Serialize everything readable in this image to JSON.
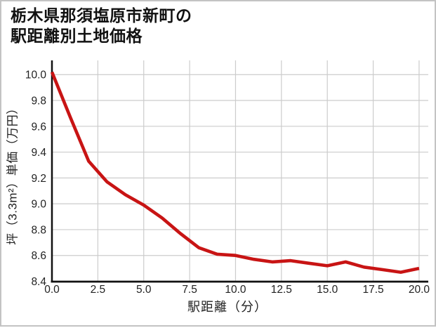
{
  "title": {
    "line1": "栃木県那須塩原市新町の",
    "line2": "駅距離別土地価格"
  },
  "chart_data": {
    "type": "line",
    "title": "栃木県那須塩原市新町の駅距離別土地価格",
    "xlabel": "駅距離（分）",
    "ylabel": "坪（3.3m²）単価（万円）",
    "x": [
      0,
      1,
      2,
      3,
      4,
      5,
      6,
      7,
      8,
      9,
      10,
      11,
      12,
      13,
      14,
      15,
      16,
      17,
      18,
      19,
      20
    ],
    "y": [
      10.02,
      9.67,
      9.33,
      9.17,
      9.07,
      8.99,
      8.89,
      8.77,
      8.66,
      8.61,
      8.6,
      8.57,
      8.55,
      8.56,
      8.54,
      8.52,
      8.55,
      8.51,
      8.49,
      8.47,
      8.5
    ],
    "xlim": [
      0,
      20.5
    ],
    "ylim": [
      8.4,
      10.11
    ],
    "x_ticks": [
      0,
      2.5,
      5,
      7.5,
      10,
      12.5,
      15,
      17.5,
      20
    ],
    "x_tick_labels": [
      "0.0",
      "2.5",
      "5.0",
      "7.5",
      "10.0",
      "12.5",
      "15.0",
      "17.5",
      "20.0"
    ],
    "y_ticks": [
      8.4,
      8.6,
      8.8,
      9.0,
      9.2,
      9.4,
      9.6,
      9.8,
      10.0
    ],
    "y_tick_labels": [
      "8.4",
      "8.6",
      "8.8",
      "9.0",
      "9.2",
      "9.4",
      "9.6",
      "9.8",
      "10.0"
    ],
    "grid": true,
    "legend": "none",
    "line_color": "#c81414",
    "grid_color": "#cccccc",
    "spine_color": "#111111",
    "tick_label_color": "#222222",
    "background": "#ffffff",
    "border_color": "#c3c3c3"
  }
}
